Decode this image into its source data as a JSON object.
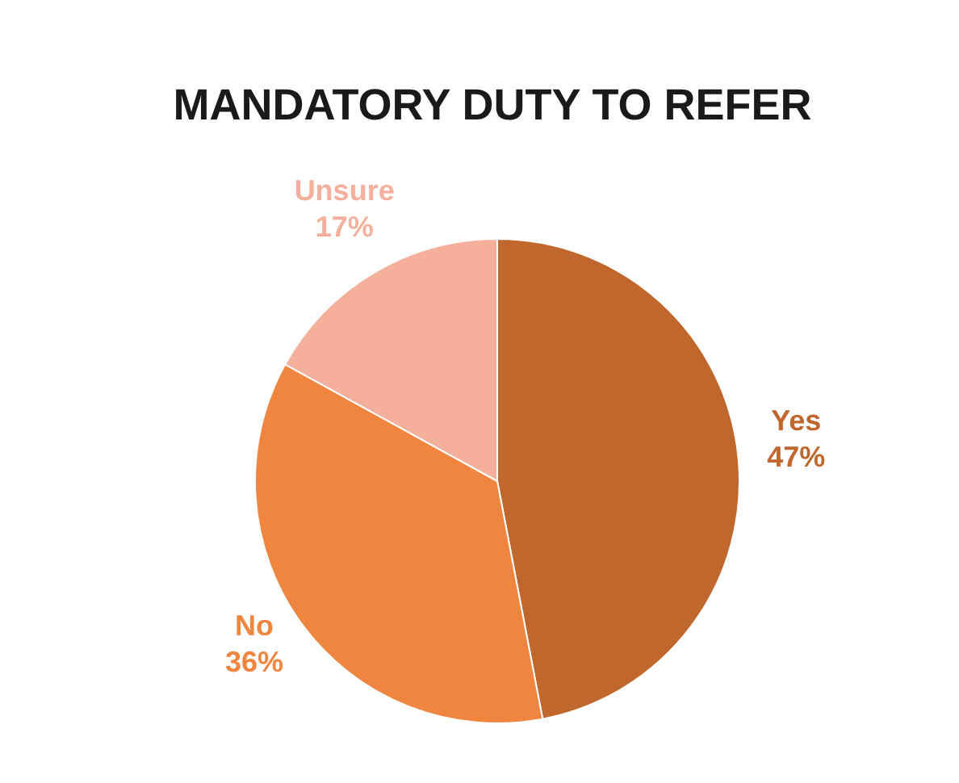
{
  "chart_data": {
    "type": "pie",
    "title": "MANDATORY DUTY TO REFER",
    "categories": [
      "Yes",
      "No",
      "Unsure"
    ],
    "values": [
      47,
      36,
      17
    ],
    "value_labels": [
      "47%",
      "36%",
      "17%"
    ],
    "colors": [
      "#c0672e",
      "#f08540",
      "#f4b09a"
    ]
  }
}
